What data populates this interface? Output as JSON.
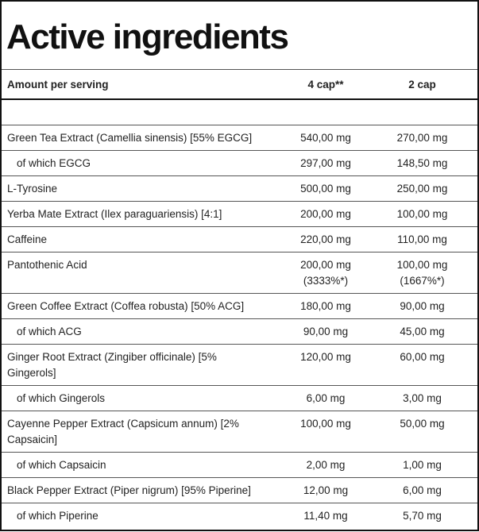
{
  "title": "Active ingredients",
  "header": [
    "Amount per serving",
    "4 cap**",
    "2 cap"
  ],
  "rows": [
    {
      "cells": [
        "Green Tea Extract (Camellia sinensis) [55% EGCG]",
        [
          "540,00 mg"
        ],
        [
          "270,00 mg"
        ]
      ]
    },
    {
      "sub": true,
      "cells": [
        "of which EGCG",
        [
          "297,00 mg"
        ],
        [
          "148,50 mg"
        ]
      ]
    },
    {
      "cells": [
        "L-Tyrosine",
        [
          "500,00 mg"
        ],
        [
          "250,00 mg"
        ]
      ]
    },
    {
      "cells": [
        "Yerba Mate Extract (Ilex paraguariensis) [4:1]",
        [
          "200,00 mg"
        ],
        [
          "100,00 mg"
        ]
      ]
    },
    {
      "cells": [
        "Caffeine",
        [
          "220,00 mg"
        ],
        [
          "110,00 mg"
        ]
      ]
    },
    {
      "cells": [
        "Pantothenic Acid",
        [
          "200,00 mg",
          "(3333%*)"
        ],
        [
          "100,00 mg",
          "(1667%*)"
        ]
      ]
    },
    {
      "cells": [
        "Green Coffee Extract (Coffea robusta) [50% ACG]",
        [
          "180,00 mg"
        ],
        [
          "90,00 mg"
        ]
      ]
    },
    {
      "sub": true,
      "cells": [
        "of which ACG",
        [
          "90,00 mg"
        ],
        [
          "45,00 mg"
        ]
      ]
    },
    {
      "cells": [
        "Ginger Root Extract (Zingiber officinale) [5% Gingerols]",
        [
          "120,00 mg"
        ],
        [
          "60,00 mg"
        ]
      ]
    },
    {
      "sub": true,
      "cells": [
        "of which Gingerols",
        [
          "6,00 mg"
        ],
        [
          "3,00 mg"
        ]
      ]
    },
    {
      "cells": [
        "Cayenne Pepper Extract (Capsicum annum) [2% Capsaicin]",
        [
          "100,00 mg"
        ],
        [
          "50,00 mg"
        ]
      ]
    },
    {
      "sub": true,
      "cells": [
        "of which Capsaicin",
        [
          "2,00 mg"
        ],
        [
          "1,00 mg"
        ]
      ]
    },
    {
      "cells": [
        "Black Pepper Extract (Piper nigrum) [95% Piperine]",
        [
          "12,00 mg"
        ],
        [
          "6,00 mg"
        ]
      ]
    },
    {
      "sub": true,
      "cells": [
        "of which Piperine",
        [
          "11,40 mg"
        ],
        [
          "5,70 mg"
        ]
      ]
    }
  ]
}
